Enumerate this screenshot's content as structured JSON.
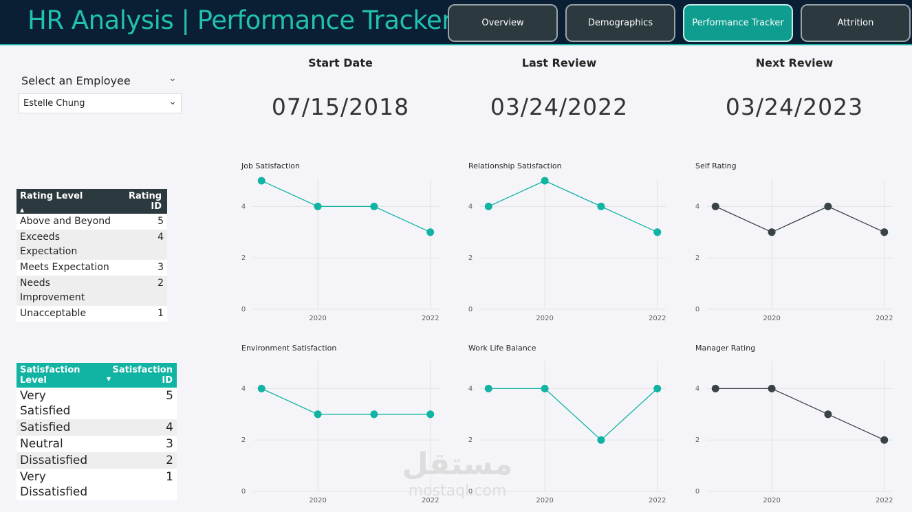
{
  "header": {
    "title": "HR Analysis | Performance Tracker",
    "nav": [
      {
        "label": "Overview",
        "active": false
      },
      {
        "label": "Demographics",
        "active": false
      },
      {
        "label": "Performance Tracker",
        "active": true
      },
      {
        "label": "Attrition",
        "active": false
      }
    ]
  },
  "slicer": {
    "title": "Select an Employee",
    "selected": "Estelle Chung"
  },
  "rating_table": {
    "headers": [
      "Rating Level",
      "Rating ID"
    ],
    "rows": [
      {
        "level": "Above and Beyond",
        "id": "5"
      },
      {
        "level": "Exceeds Expectation",
        "id": "4"
      },
      {
        "level": "Meets Expectation",
        "id": "3"
      },
      {
        "level": "Needs Improvement",
        "id": "2"
      },
      {
        "level": "Unacceptable",
        "id": "1"
      }
    ]
  },
  "satisfaction_table": {
    "headers": [
      "Satisfaction Level",
      "Satisfaction ID"
    ],
    "rows": [
      {
        "level": "Very Satisfied",
        "id": "5"
      },
      {
        "level": "Satisfied",
        "id": "4"
      },
      {
        "level": "Neutral",
        "id": "3"
      },
      {
        "level": "Dissatisfied",
        "id": "2"
      },
      {
        "level": "Very Dissatisfied",
        "id": "1"
      }
    ]
  },
  "cards": {
    "start_date": {
      "label": "Start Date",
      "value": "07/15/2018"
    },
    "last_review": {
      "label": "Last Review",
      "value": "03/24/2022"
    },
    "next_review": {
      "label": "Next Review",
      "value": "03/24/2023"
    }
  },
  "colors": {
    "teal": "#11b3a3",
    "dark": "#3a4245",
    "header_bg": "#0a1f33",
    "title_teal": "#21c0b0"
  },
  "watermark": {
    "arabic": "مستقل",
    "latin": "mostaql.com"
  },
  "chart_data": [
    {
      "type": "line",
      "title": "Job Satisfaction",
      "x": [
        2019,
        2020,
        2021,
        2022
      ],
      "values": [
        5,
        4,
        4,
        3
      ],
      "x_ticks": [
        "2020",
        "2022"
      ],
      "y_ticks": [
        "0",
        "2",
        "4"
      ],
      "ylim": [
        0,
        5
      ],
      "color": "#11b3a3"
    },
    {
      "type": "line",
      "title": "Relationship Satisfaction",
      "x": [
        2019,
        2020,
        2021,
        2022
      ],
      "values": [
        4,
        5,
        4,
        3
      ],
      "x_ticks": [
        "2020",
        "2022"
      ],
      "y_ticks": [
        "0",
        "2",
        "4"
      ],
      "ylim": [
        0,
        5
      ],
      "color": "#11b3a3"
    },
    {
      "type": "line",
      "title": "Self Rating",
      "x": [
        2019,
        2020,
        2021,
        2022
      ],
      "values": [
        4,
        3,
        4,
        3
      ],
      "x_ticks": [
        "2020",
        "2022"
      ],
      "y_ticks": [
        "0",
        "2",
        "4"
      ],
      "ylim": [
        0,
        5
      ],
      "color": "#3a4245"
    },
    {
      "type": "line",
      "title": "Environment Satisfaction",
      "x": [
        2019,
        2020,
        2021,
        2022
      ],
      "values": [
        4,
        3,
        3,
        3
      ],
      "x_ticks": [
        "2020",
        "2022"
      ],
      "y_ticks": [
        "0",
        "2",
        "4"
      ],
      "ylim": [
        0,
        5
      ],
      "color": "#11b3a3"
    },
    {
      "type": "line",
      "title": "Work Life Balance",
      "x": [
        2019,
        2020,
        2021,
        2022
      ],
      "values": [
        4,
        4,
        2,
        4
      ],
      "x_ticks": [
        "2020",
        "2022"
      ],
      "y_ticks": [
        "0",
        "2",
        "4"
      ],
      "ylim": [
        0,
        5
      ],
      "color": "#11b3a3"
    },
    {
      "type": "line",
      "title": "Manager Rating",
      "x": [
        2019,
        2020,
        2021,
        2022
      ],
      "values": [
        4,
        4,
        3,
        2
      ],
      "x_ticks": [
        "2020",
        "2022"
      ],
      "y_ticks": [
        "0",
        "2",
        "4"
      ],
      "ylim": [
        0,
        5
      ],
      "color": "#3a4245"
    }
  ]
}
